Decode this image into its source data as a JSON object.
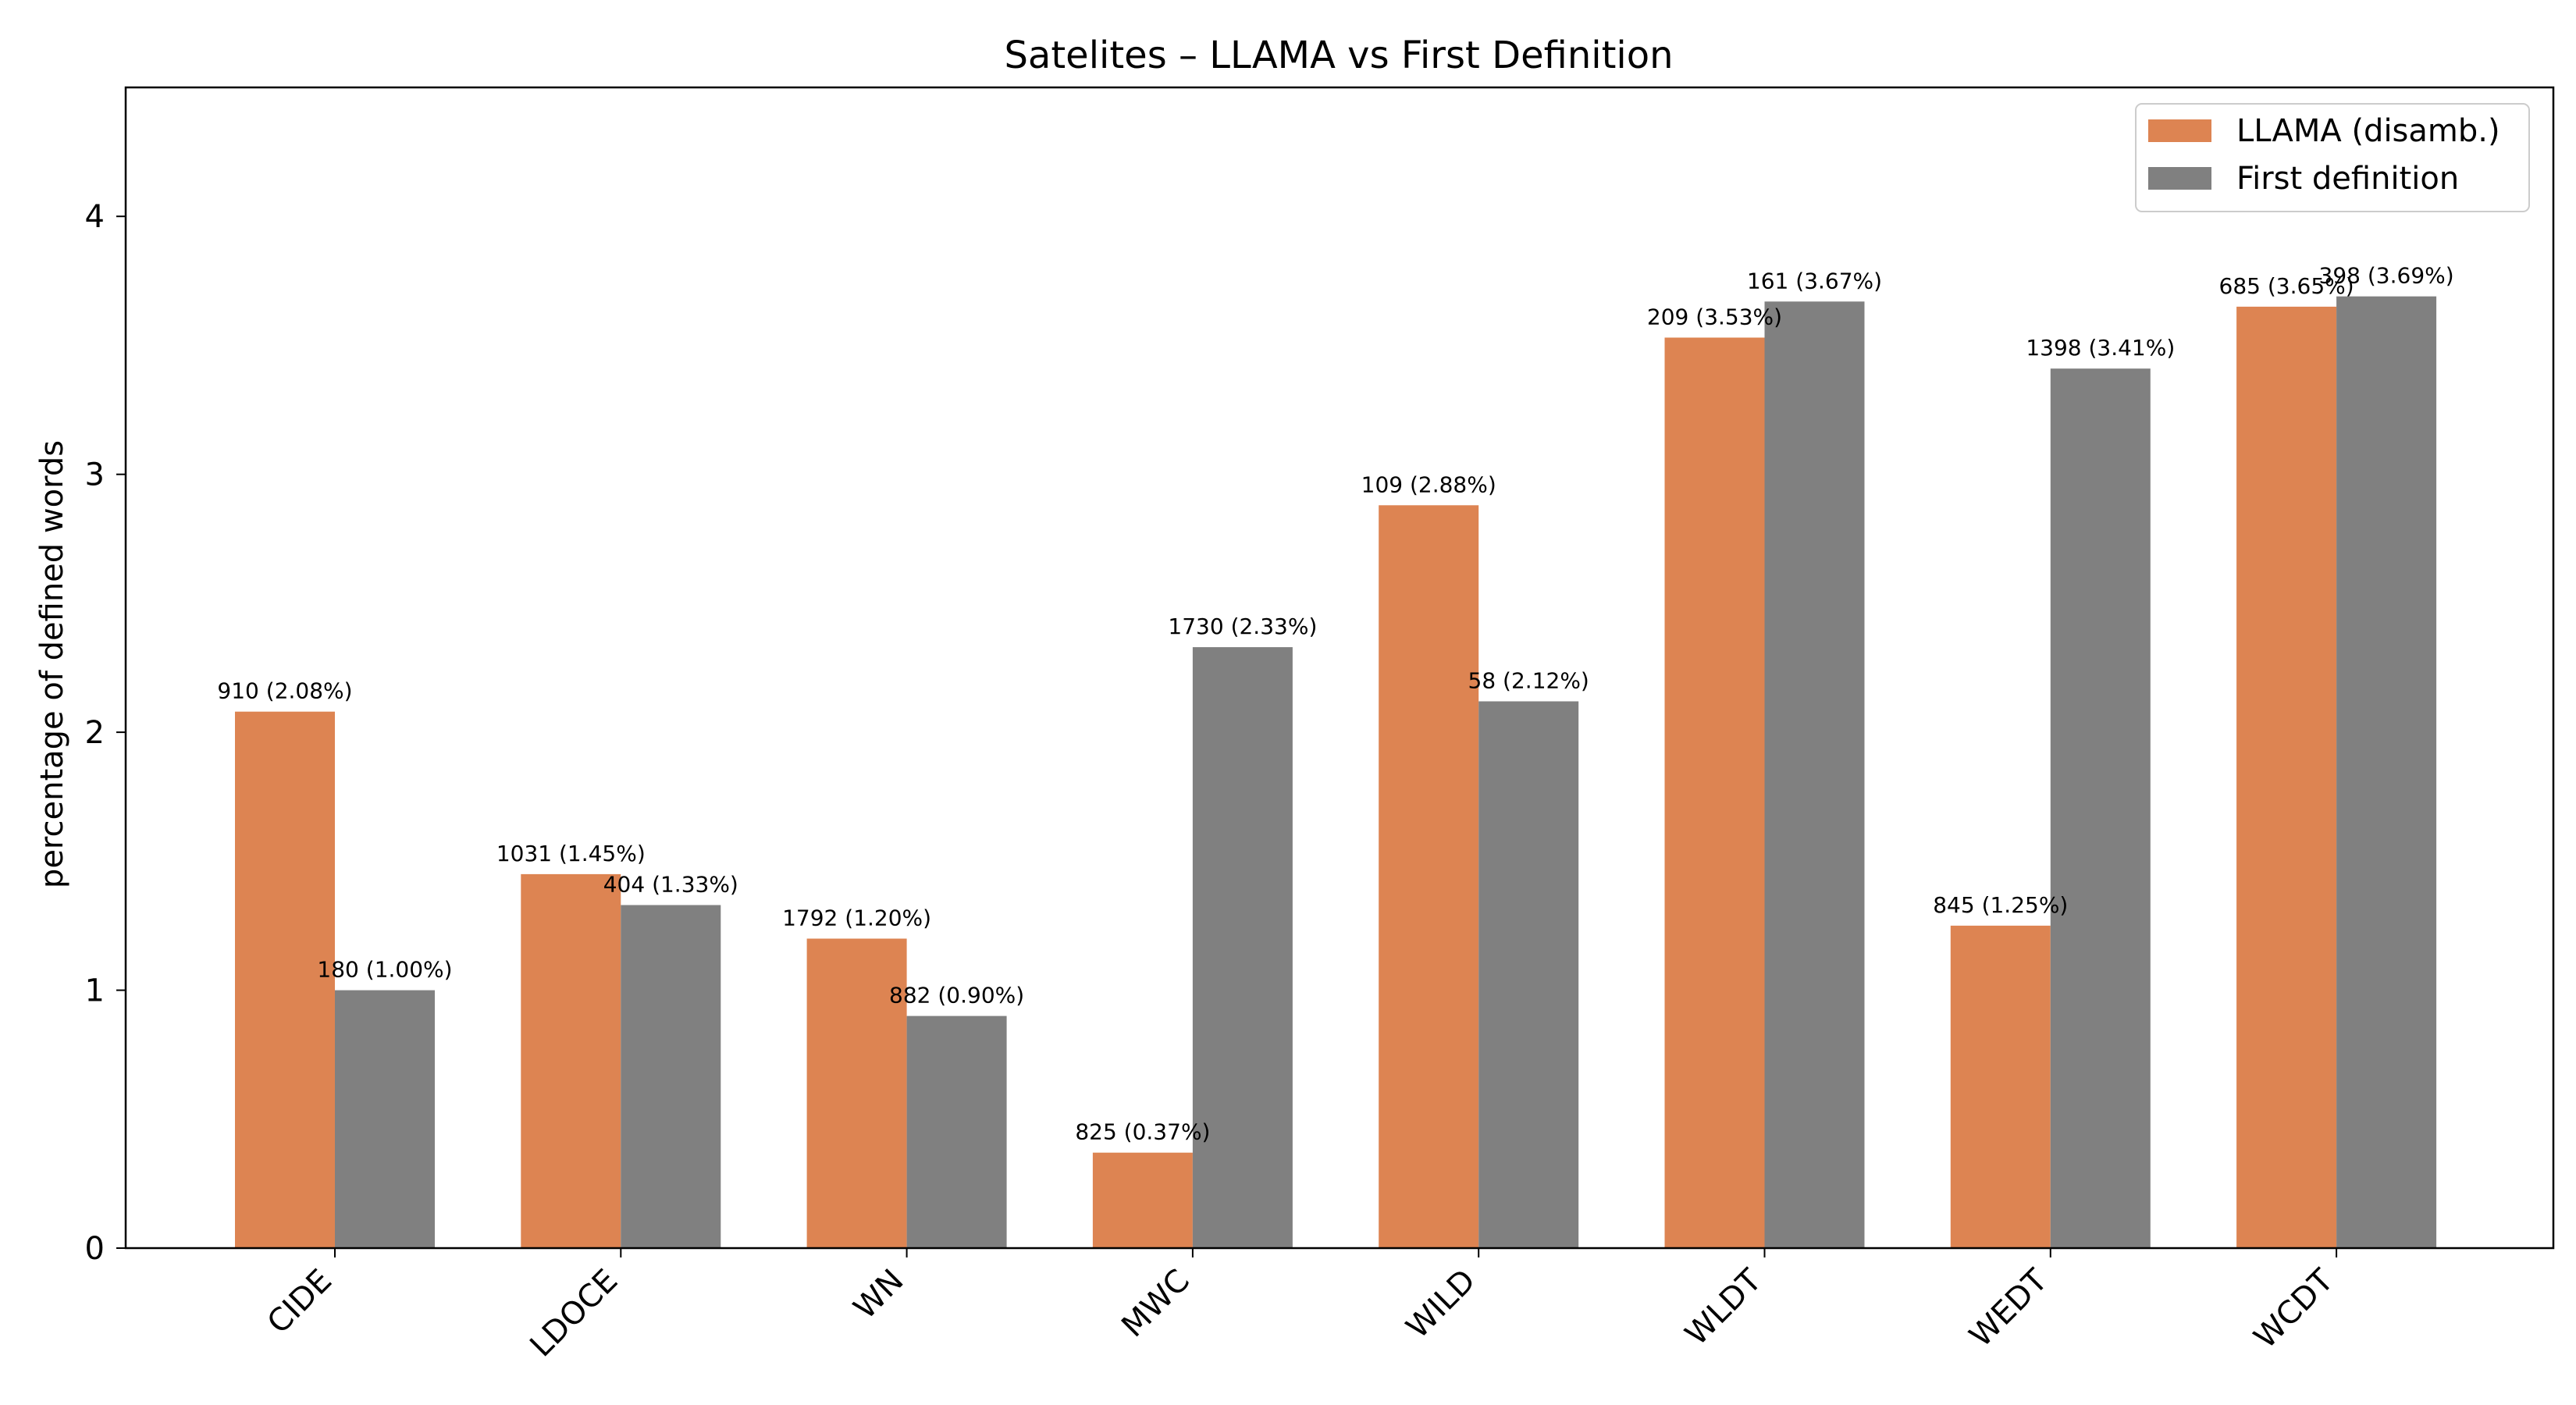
{
  "chart_data": {
    "type": "bar",
    "title": "Satelites – LLAMA vs First Definition",
    "xlabel": "",
    "ylabel": "percentage of defined words",
    "categories": [
      "CIDE",
      "LDOCE",
      "WN",
      "MWC",
      "WILD",
      "WLDT",
      "WEDT",
      "WCDT"
    ],
    "series": [
      {
        "name": "LLAMA (disamb.)",
        "color": "#dd8452",
        "values": [
          2.08,
          1.45,
          1.2,
          0.37,
          2.88,
          3.53,
          1.25,
          3.65
        ],
        "labels": [
          "910 (2.08%)",
          "1031 (1.45%)",
          "1792 (1.20%)",
          "825 (0.37%)",
          "109 (2.88%)",
          "209 (3.53%)",
          "845 (1.25%)",
          "685 (3.65%)"
        ]
      },
      {
        "name": "First definition",
        "color": "#808080",
        "values": [
          1.0,
          1.33,
          0.9,
          2.33,
          2.12,
          3.67,
          3.41,
          3.69
        ],
        "labels": [
          "180 (1.00%)",
          "404 (1.33%)",
          "882 (0.90%)",
          "1730 (2.33%)",
          "58 (2.12%)",
          "161 (3.67%)",
          "1398 (3.41%)",
          "398 (3.69%)"
        ]
      }
    ],
    "ylim": [
      0,
      4.5
    ],
    "yticks": [
      0,
      1,
      2,
      3,
      4
    ],
    "grid": false,
    "legend_position": "upper right"
  }
}
